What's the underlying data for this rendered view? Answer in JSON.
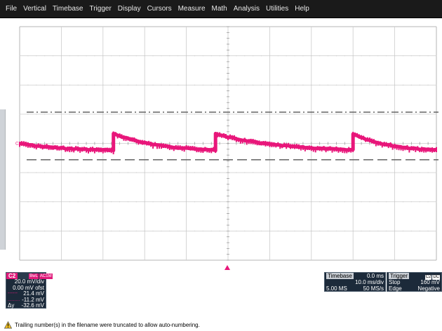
{
  "menu": {
    "items": [
      "File",
      "Vertical",
      "Timebase",
      "Trigger",
      "Display",
      "Cursors",
      "Measure",
      "Math",
      "Analysis",
      "Utilities",
      "Help"
    ]
  },
  "grid": {
    "divisions_x": 10,
    "divisions_y": 8
  },
  "trace": {
    "channel": "C2",
    "color": "#e8167a",
    "vdiv_mv": 20.0,
    "offset_mv": 0.0,
    "cursor1_mv": 21.4,
    "cursor2_mv": -11.2,
    "time_per_div_ms": 10,
    "jump_times_ms": [
      22.5,
      47,
      80
    ],
    "jump_high_mv": 6.7,
    "decay_low_mv": -4.6,
    "start_mv": 0.0
  },
  "channel_panel": {
    "label": "C2",
    "bwl": "BwL",
    "coupling": "AC1M",
    "vdiv": "20.0 mV/div",
    "offset": "0.00 mV ofst",
    "cursor1_symbol": "------",
    "cursor1_value": "21.4 mV",
    "cursor2_symbol": ".........",
    "cursor2_value": "-11.2 mV",
    "delta_symbol": "Δy",
    "delta_value": "-32.6 mV"
  },
  "timebase_panel": {
    "header": "Timebase",
    "delay": "0.0 ms",
    "tdiv": "10.0 ms/div",
    "samples": "5.00 MS",
    "rate": "50 MS/s"
  },
  "trigger_panel": {
    "header": "Trigger",
    "chip1": "C2",
    "chip2": "DC",
    "mode": "Stop",
    "level": "160 mV",
    "type": "Edge",
    "slope": "Negative"
  },
  "status": {
    "message": "Trailing number(s) in the filename were truncated to allow auto-numbering."
  },
  "colors": {
    "trace": "#e8167a",
    "grid": "#cccccc",
    "cursor": "#555555",
    "panel_bg": "#1c2a3a"
  }
}
